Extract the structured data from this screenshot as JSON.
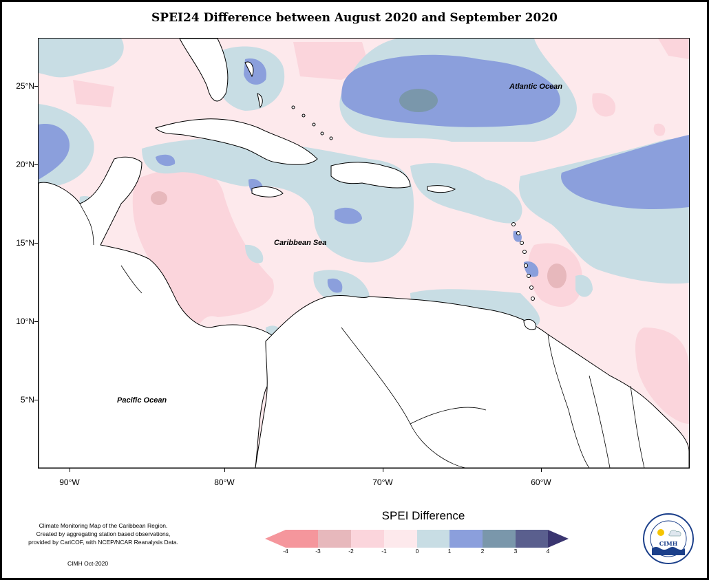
{
  "title": "SPEI24 Difference between August 2020 and September 2020",
  "map": {
    "latitude_labels": [
      "25°N",
      "20°N",
      "15°N",
      "10°N",
      "5°N"
    ],
    "longitude_labels": [
      "90°W",
      "80°W",
      "70°W",
      "60°W"
    ],
    "ocean_labels": {
      "atlantic": "Atlantic Ocean",
      "caribbean": "Caribbean Sea",
      "pacific": "Pacific Ocean"
    }
  },
  "legend": {
    "title": "SPEI Difference",
    "ticks": [
      "-4",
      "-3",
      "-2",
      "-1",
      "0",
      "1",
      "2",
      "3",
      "4"
    ],
    "colors": {
      "lt_-3": "#f5969c",
      "-3_-2": "#e7b8bc",
      "-2_-1": "#fbd5dc",
      "-1_0": "#fde9ec",
      "0_1": "#c8dde4",
      "1_2": "#8b9fdc",
      "2_3": "#7a97ab",
      "gt_3": "#5a5f8e",
      "max_arrow": "#3a3570"
    }
  },
  "credit": {
    "line1": "Climate Monitoring Map of the Caribbean Region.",
    "line2": "Created by aggregating station based observations,",
    "line3": "provided by CariCOF, with NCEP/NCAR Reanalysis Data.",
    "date": "CIMH Oct-2020"
  },
  "logo": {
    "ring_text": "Caribbean Institute for Meteorology and Hydrology",
    "center_text": "CIMH"
  }
}
